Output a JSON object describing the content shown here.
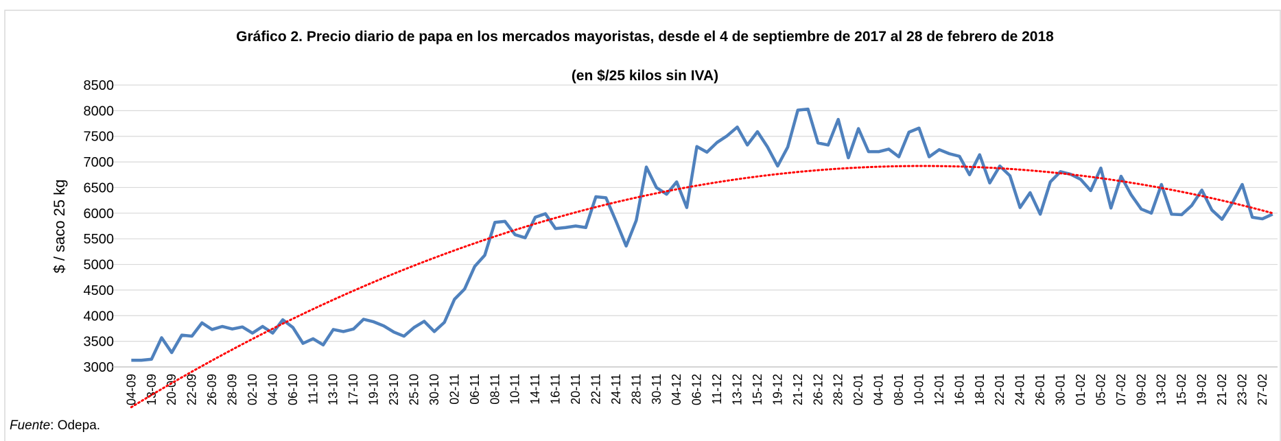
{
  "chart_data": {
    "type": "line",
    "title": "Gráfico 2. Precio diario de papa en los mercados mayoristas, desde el 4 de septiembre de 2017 al 28 de febrero de 2018",
    "subtitle": "(en $/25 kilos sin IVA)",
    "y_label": "$ / saco 25 kg",
    "categories": [
      "04-09",
      null,
      "13-09",
      null,
      "20-09",
      null,
      "22-09",
      null,
      "26-09",
      null,
      "28-09",
      null,
      "02-10",
      null,
      "04-10",
      null,
      "06-10",
      null,
      "11-10",
      null,
      "13-10",
      null,
      "17-10",
      null,
      "19-10",
      null,
      "23-10",
      null,
      "25-10",
      null,
      "30-10",
      null,
      "02-11",
      null,
      "06-11",
      null,
      "08-11",
      null,
      "10-11",
      null,
      "14-11",
      null,
      "16-11",
      null,
      "20-11",
      null,
      "22-11",
      null,
      "24-11",
      null,
      "28-11",
      null,
      "30-11",
      null,
      "04-12",
      null,
      "06-12",
      null,
      "11-12",
      null,
      "13-12",
      null,
      "15-12",
      null,
      "19-12",
      null,
      "21-12",
      null,
      "26-12",
      null,
      "28-12",
      null,
      "02-01",
      null,
      "04-01",
      null,
      "08-01",
      null,
      "10-01",
      null,
      "12-01",
      null,
      "16-01",
      null,
      "18-01",
      null,
      "22-01",
      null,
      "24-01",
      null,
      "26-01",
      null,
      "30-01",
      null,
      "01-02",
      null,
      "05-02",
      null,
      "07-02",
      null,
      "09-02",
      null,
      "13-02",
      null,
      "15-02",
      null,
      "19-02",
      null,
      "21-02",
      null,
      "23-02",
      null,
      "27-02",
      null
    ],
    "series": [
      {
        "name": "Precio",
        "color": "#4f81bd",
        "values": [
          3130,
          3130,
          3150,
          3570,
          3280,
          3620,
          3600,
          3860,
          3730,
          3790,
          3740,
          3780,
          3660,
          3790,
          3660,
          3920,
          3770,
          3460,
          3550,
          3430,
          3730,
          3690,
          3740,
          3930,
          3880,
          3800,
          3680,
          3600,
          3770,
          3890,
          3690,
          3870,
          4320,
          4520,
          4960,
          5180,
          5820,
          5840,
          5580,
          5520,
          5920,
          5990,
          5700,
          5720,
          5750,
          5720,
          6320,
          6300,
          5840,
          5360,
          5860,
          6900,
          6500,
          6370,
          6610,
          6110,
          7300,
          7190,
          7380,
          7510,
          7680,
          7330,
          7590,
          7290,
          6920,
          7290,
          8010,
          8030,
          7370,
          7330,
          7830,
          7080,
          7650,
          7200,
          7200,
          7250,
          7100,
          7580,
          7660,
          7100,
          7240,
          7160,
          7110,
          6750,
          7140,
          6590,
          6920,
          6730,
          6110,
          6400,
          5980,
          6610,
          6810,
          6760,
          6660,
          6440,
          6880,
          6100,
          6720,
          6360,
          6080,
          6000,
          6560,
          5980,
          5970,
          6150,
          6450,
          6060,
          5880,
          6190,
          6560,
          5920,
          5890,
          5980
        ]
      }
    ],
    "trendline": {
      "type": "polynomial",
      "order": 2,
      "color": "#ff0000"
    },
    "ylim": [
      3000,
      8500
    ],
    "yticks": [
      3000,
      3500,
      4000,
      4500,
      5000,
      5500,
      6000,
      6500,
      7000,
      7500,
      8000,
      8500
    ],
    "grid": true,
    "source": {
      "label": "Fuente",
      "text": ": Odepa."
    }
  }
}
